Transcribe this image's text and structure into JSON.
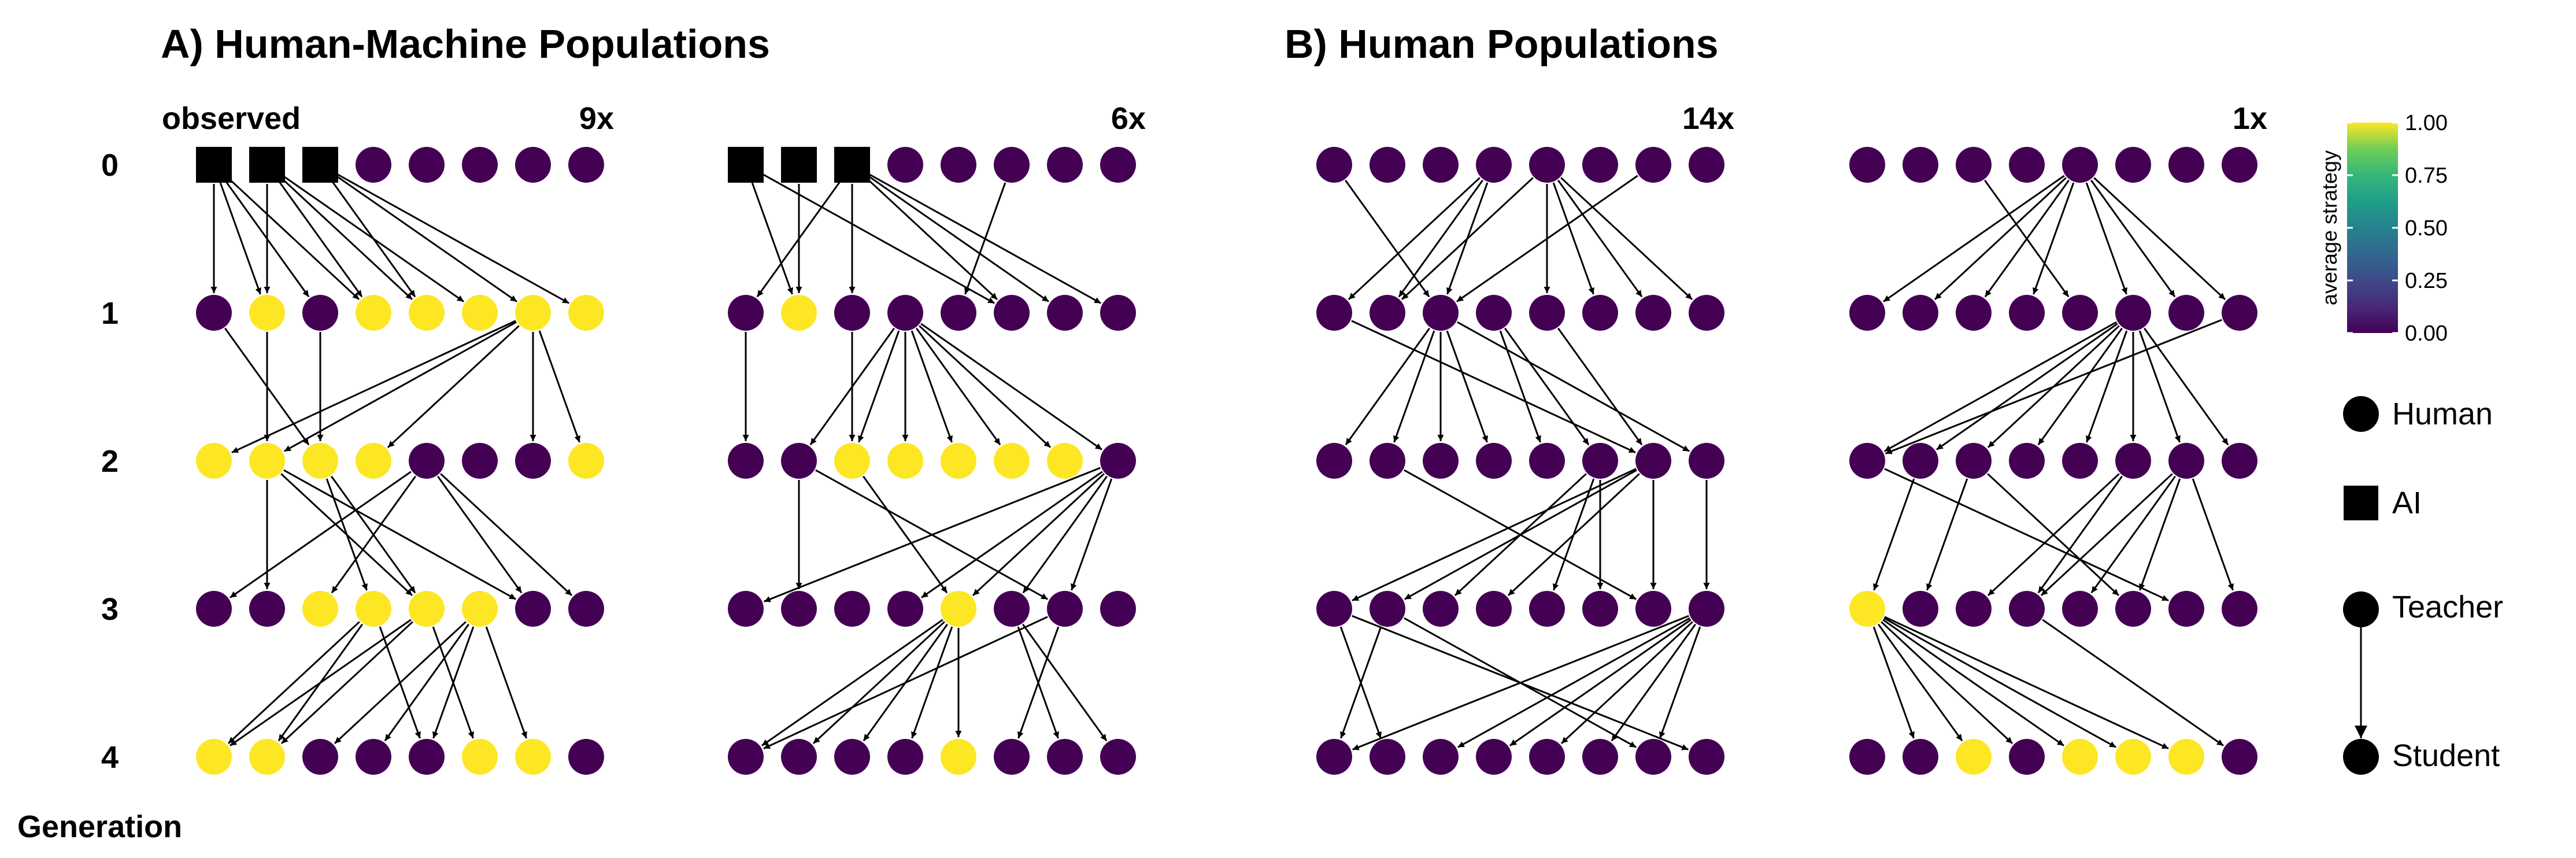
{
  "titles": {
    "a": "A) Human-Machine Populations",
    "b": "B) Human Populations"
  },
  "observed_label": "observed",
  "y_axis_label": "Generation",
  "generations": [
    "0",
    "1",
    "2",
    "3",
    "4"
  ],
  "colors": {
    "purple": "#440154",
    "yellow": "#fde725",
    "black": "#000000"
  },
  "legend": {
    "colorbar_title": "average strategy",
    "colorbar_ticks": [
      "1.00",
      "0.75",
      "0.50",
      "0.25",
      "0.00"
    ],
    "human": "Human",
    "ai": "AI",
    "teacher": "Teacher",
    "student": "Student"
  },
  "panels": [
    {
      "id": "a1",
      "count": "9x",
      "nodes": [
        [
          "A",
          "A",
          "A",
          "P",
          "P",
          "P",
          "P",
          "P"
        ],
        [
          "P",
          "Y",
          "P",
          "Y",
          "Y",
          "Y",
          "Y",
          "Y"
        ],
        [
          "Y",
          "Y",
          "Y",
          "Y",
          "P",
          "P",
          "P",
          "Y"
        ],
        [
          "P",
          "P",
          "Y",
          "Y",
          "Y",
          "Y",
          "P",
          "P"
        ],
        [
          "Y",
          "Y",
          "P",
          "P",
          "P",
          "Y",
          "Y",
          "P"
        ]
      ],
      "edges": [
        [
          [
            0,
            0
          ],
          [
            0,
            1
          ],
          [
            0,
            2
          ],
          [
            0,
            3
          ],
          [
            1,
            1
          ],
          [
            1,
            3
          ],
          [
            1,
            4
          ],
          [
            1,
            5
          ],
          [
            2,
            4
          ],
          [
            2,
            6
          ],
          [
            2,
            7
          ]
        ],
        [
          [
            0,
            2
          ],
          [
            1,
            1
          ],
          [
            2,
            2
          ],
          [
            6,
            0
          ],
          [
            6,
            1
          ],
          [
            6,
            3
          ],
          [
            6,
            6
          ],
          [
            6,
            7
          ]
        ],
        [
          [
            1,
            1
          ],
          [
            1,
            4
          ],
          [
            1,
            6
          ],
          [
            2,
            3
          ],
          [
            2,
            4
          ],
          [
            4,
            0
          ],
          [
            4,
            2
          ],
          [
            4,
            6
          ],
          [
            4,
            7
          ]
        ],
        [
          [
            3,
            0
          ],
          [
            3,
            1
          ],
          [
            3,
            4
          ],
          [
            4,
            0
          ],
          [
            4,
            1
          ],
          [
            4,
            5
          ],
          [
            5,
            2
          ],
          [
            5,
            3
          ],
          [
            5,
            4
          ],
          [
            5,
            6
          ]
        ]
      ]
    },
    {
      "id": "a2",
      "count": "6x",
      "nodes": [
        [
          "A",
          "A",
          "A",
          "P",
          "P",
          "P",
          "P",
          "P"
        ],
        [
          "P",
          "Y",
          "P",
          "P",
          "P",
          "P",
          "P",
          "P"
        ],
        [
          "P",
          "P",
          "Y",
          "Y",
          "Y",
          "Y",
          "Y",
          "P"
        ],
        [
          "P",
          "P",
          "P",
          "P",
          "Y",
          "P",
          "P",
          "P"
        ],
        [
          "P",
          "P",
          "P",
          "P",
          "Y",
          "P",
          "P",
          "P"
        ]
      ],
      "edges": [
        [
          [
            0,
            1
          ],
          [
            0,
            5
          ],
          [
            1,
            1
          ],
          [
            2,
            0
          ],
          [
            2,
            2
          ],
          [
            2,
            5
          ],
          [
            2,
            6
          ],
          [
            2,
            7
          ],
          [
            5,
            4
          ]
        ],
        [
          [
            0,
            0
          ],
          [
            2,
            2
          ],
          [
            3,
            1
          ],
          [
            3,
            2
          ],
          [
            3,
            3
          ],
          [
            3,
            4
          ],
          [
            3,
            5
          ],
          [
            3,
            6
          ],
          [
            3,
            7
          ]
        ],
        [
          [
            1,
            1
          ],
          [
            2,
            4
          ],
          [
            1,
            6
          ],
          [
            7,
            0
          ],
          [
            7,
            3
          ],
          [
            7,
            4
          ],
          [
            7,
            5
          ],
          [
            7,
            6
          ]
        ],
        [
          [
            4,
            0
          ],
          [
            4,
            1
          ],
          [
            4,
            2
          ],
          [
            4,
            3
          ],
          [
            4,
            4
          ],
          [
            5,
            6
          ],
          [
            5,
            7
          ],
          [
            6,
            0
          ],
          [
            6,
            5
          ]
        ]
      ]
    },
    {
      "id": "b1",
      "count": "14x",
      "nodes": [
        [
          "P",
          "P",
          "P",
          "P",
          "P",
          "P",
          "P",
          "P"
        ],
        [
          "P",
          "P",
          "P",
          "P",
          "P",
          "P",
          "P",
          "P"
        ],
        [
          "P",
          "P",
          "P",
          "P",
          "P",
          "P",
          "P",
          "P"
        ],
        [
          "P",
          "P",
          "P",
          "P",
          "P",
          "P",
          "P",
          "P"
        ],
        [
          "P",
          "P",
          "P",
          "P",
          "P",
          "P",
          "P",
          "P"
        ]
      ],
      "edges": [
        [
          [
            0,
            2
          ],
          [
            3,
            0
          ],
          [
            3,
            1
          ],
          [
            3,
            2
          ],
          [
            4,
            1
          ],
          [
            4,
            4
          ],
          [
            4,
            5
          ],
          [
            4,
            6
          ],
          [
            4,
            7
          ],
          [
            6,
            2
          ]
        ],
        [
          [
            0,
            6
          ],
          [
            2,
            0
          ],
          [
            2,
            1
          ],
          [
            2,
            2
          ],
          [
            2,
            3
          ],
          [
            2,
            7
          ],
          [
            3,
            4
          ],
          [
            3,
            5
          ],
          [
            4,
            6
          ]
        ],
        [
          [
            1,
            6
          ],
          [
            5,
            2
          ],
          [
            5,
            4
          ],
          [
            5,
            5
          ],
          [
            6,
            0
          ],
          [
            6,
            1
          ],
          [
            6,
            3
          ],
          [
            6,
            6
          ],
          [
            7,
            7
          ]
        ],
        [
          [
            0,
            1
          ],
          [
            0,
            7
          ],
          [
            1,
            0
          ],
          [
            1,
            6
          ],
          [
            7,
            0
          ],
          [
            7,
            2
          ],
          [
            7,
            3
          ],
          [
            7,
            4
          ],
          [
            7,
            5
          ],
          [
            7,
            6
          ]
        ]
      ]
    },
    {
      "id": "b2",
      "count": "1x",
      "nodes": [
        [
          "P",
          "P",
          "P",
          "P",
          "P",
          "P",
          "P",
          "P"
        ],
        [
          "P",
          "P",
          "P",
          "P",
          "P",
          "P",
          "P",
          "P"
        ],
        [
          "P",
          "P",
          "P",
          "P",
          "P",
          "P",
          "P",
          "P"
        ],
        [
          "Y",
          "P",
          "P",
          "P",
          "P",
          "P",
          "P",
          "P"
        ],
        [
          "P",
          "P",
          "Y",
          "P",
          "Y",
          "Y",
          "Y",
          "P"
        ]
      ],
      "edges": [
        [
          [
            2,
            4
          ],
          [
            4,
            0
          ],
          [
            4,
            1
          ],
          [
            4,
            2
          ],
          [
            4,
            3
          ],
          [
            4,
            5
          ],
          [
            4,
            6
          ],
          [
            4,
            7
          ]
        ],
        [
          [
            5,
            0
          ],
          [
            5,
            1
          ],
          [
            5,
            2
          ],
          [
            5,
            3
          ],
          [
            5,
            4
          ],
          [
            5,
            5
          ],
          [
            5,
            6
          ],
          [
            5,
            7
          ],
          [
            7,
            0
          ]
        ],
        [
          [
            0,
            6
          ],
          [
            1,
            0
          ],
          [
            2,
            1
          ],
          [
            2,
            5
          ],
          [
            5,
            2
          ],
          [
            5,
            3
          ],
          [
            6,
            3
          ],
          [
            6,
            4
          ],
          [
            6,
            5
          ],
          [
            6,
            7
          ]
        ],
        [
          [
            0,
            1
          ],
          [
            0,
            2
          ],
          [
            0,
            3
          ],
          [
            0,
            4
          ],
          [
            0,
            5
          ],
          [
            0,
            6
          ],
          [
            3,
            7
          ]
        ]
      ]
    }
  ]
}
